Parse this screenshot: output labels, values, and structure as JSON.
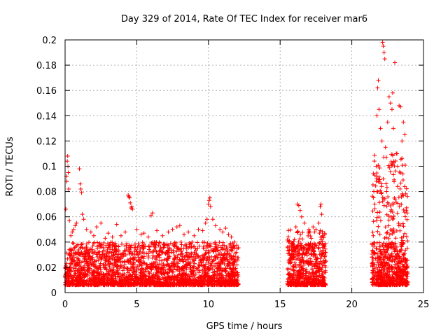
{
  "chart_data": {
    "type": "scatter",
    "title": "Day 329 of 2014, Rate Of TEC Index for receiver mar6",
    "xlabel": "GPS time / hours",
    "ylabel": "ROTI / TECUs",
    "xlim": [
      0,
      25
    ],
    "ylim": [
      0,
      0.2
    ],
    "xticks": [
      0,
      5,
      10,
      15,
      20,
      25
    ],
    "xtick_labels": [
      "0",
      "5",
      "10",
      "15",
      "20",
      "25"
    ],
    "yticks": [
      0,
      0.02,
      0.04,
      0.06,
      0.08,
      0.1,
      0.12,
      0.14,
      0.16,
      0.18,
      0.2
    ],
    "ytick_labels": [
      "0",
      "0.02",
      "0.04",
      "0.06",
      "0.08",
      "0.1",
      "0.12",
      "0.14",
      "0.16",
      "0.18",
      "0.2"
    ],
    "grid": true,
    "marker": "+",
    "marker_color": "#ff0000",
    "series": [
      {
        "name": "ROTI",
        "points": [
          [
            0.05,
            0.066
          ],
          [
            0.1,
            0.092
          ],
          [
            0.12,
            0.088
          ],
          [
            0.15,
            0.104
          ],
          [
            0.18,
            0.108
          ],
          [
            0.2,
            0.1
          ],
          [
            0.22,
            0.095
          ],
          [
            0.25,
            0.082
          ],
          [
            0.3,
            0.057
          ],
          [
            0.4,
            0.045
          ],
          [
            0.5,
            0.048
          ],
          [
            0.6,
            0.05
          ],
          [
            0.7,
            0.053
          ],
          [
            0.8,
            0.055
          ],
          [
            1.0,
            0.098
          ],
          [
            1.05,
            0.086
          ],
          [
            1.1,
            0.082
          ],
          [
            1.15,
            0.079
          ],
          [
            1.2,
            0.062
          ],
          [
            1.3,
            0.058
          ],
          [
            1.5,
            0.05
          ],
          [
            1.8,
            0.048
          ],
          [
            2.0,
            0.045
          ],
          [
            2.2,
            0.052
          ],
          [
            2.5,
            0.055
          ],
          [
            2.8,
            0.043
          ],
          [
            3.0,
            0.047
          ],
          [
            3.3,
            0.044
          ],
          [
            3.6,
            0.054
          ],
          [
            3.9,
            0.045
          ],
          [
            4.2,
            0.048
          ],
          [
            4.4,
            0.077
          ],
          [
            4.45,
            0.076
          ],
          [
            4.5,
            0.075
          ],
          [
            4.55,
            0.071
          ],
          [
            4.6,
            0.067
          ],
          [
            4.65,
            0.068
          ],
          [
            4.7,
            0.066
          ],
          [
            5.0,
            0.05
          ],
          [
            5.3,
            0.046
          ],
          [
            5.5,
            0.047
          ],
          [
            5.8,
            0.044
          ],
          [
            6.0,
            0.061
          ],
          [
            6.1,
            0.063
          ],
          [
            6.4,
            0.049
          ],
          [
            6.8,
            0.045
          ],
          [
            7.2,
            0.048
          ],
          [
            7.5,
            0.05
          ],
          [
            7.8,
            0.052
          ],
          [
            8.0,
            0.053
          ],
          [
            8.3,
            0.046
          ],
          [
            8.6,
            0.048
          ],
          [
            9.0,
            0.045
          ],
          [
            9.3,
            0.05
          ],
          [
            9.6,
            0.049
          ],
          [
            9.8,
            0.055
          ],
          [
            9.9,
            0.058
          ],
          [
            10.0,
            0.07
          ],
          [
            10.05,
            0.073
          ],
          [
            10.1,
            0.075
          ],
          [
            10.15,
            0.068
          ],
          [
            10.3,
            0.058
          ],
          [
            10.5,
            0.053
          ],
          [
            10.8,
            0.05
          ],
          [
            11.0,
            0.048
          ],
          [
            11.2,
            0.051
          ],
          [
            11.4,
            0.046
          ],
          [
            11.6,
            0.044
          ],
          [
            11.8,
            0.04
          ],
          [
            12.0,
            0.035
          ],
          [
            15.6,
            0.025
          ],
          [
            15.8,
            0.03
          ],
          [
            16.0,
            0.042
          ],
          [
            16.1,
            0.052
          ],
          [
            16.2,
            0.07
          ],
          [
            16.3,
            0.069
          ],
          [
            16.4,
            0.065
          ],
          [
            16.5,
            0.06
          ],
          [
            16.7,
            0.055
          ],
          [
            17.0,
            0.05
          ],
          [
            17.3,
            0.052
          ],
          [
            17.5,
            0.05
          ],
          [
            17.7,
            0.055
          ],
          [
            17.8,
            0.068
          ],
          [
            17.85,
            0.07
          ],
          [
            17.9,
            0.062
          ],
          [
            18.0,
            0.045
          ],
          [
            21.5,
            0.045
          ],
          [
            21.6,
            0.07
          ],
          [
            21.7,
            0.1
          ],
          [
            21.75,
            0.14
          ],
          [
            21.8,
            0.162
          ],
          [
            21.85,
            0.168
          ],
          [
            21.9,
            0.145
          ],
          [
            22.0,
            0.13
          ],
          [
            22.1,
            0.12
          ],
          [
            22.15,
            0.198
          ],
          [
            22.2,
            0.195
          ],
          [
            22.25,
            0.19
          ],
          [
            22.3,
            0.185
          ],
          [
            22.35,
            0.115
          ],
          [
            22.5,
            0.135
          ],
          [
            22.6,
            0.155
          ],
          [
            22.7,
            0.15
          ],
          [
            22.8,
            0.145
          ],
          [
            22.85,
            0.158
          ],
          [
            22.9,
            0.13
          ],
          [
            23.0,
            0.182
          ],
          [
            23.1,
            0.11
          ],
          [
            23.2,
            0.1
          ],
          [
            23.3,
            0.148
          ],
          [
            23.4,
            0.147
          ],
          [
            23.5,
            0.12
          ],
          [
            23.6,
            0.135
          ],
          [
            23.7,
            0.125
          ],
          [
            23.8,
            0.065
          ]
        ]
      }
    ]
  }
}
